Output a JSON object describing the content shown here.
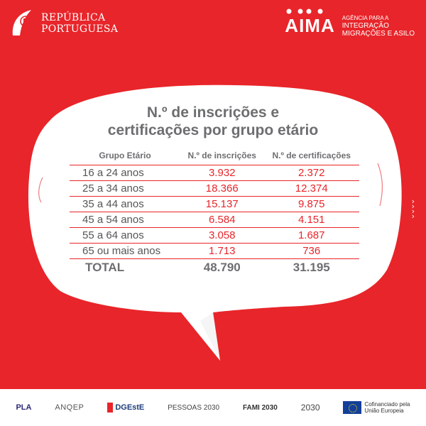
{
  "header": {
    "gov_name_line1": "REPÚBLICA",
    "gov_name_line2": "PORTUGUESA",
    "agency_word": "AIMA",
    "agency_tag_line1": "AGÊNCIA PARA A",
    "agency_tag_line2": "INTEGRAÇÃO",
    "agency_tag_line3": "MIGRAÇÕES E ASILO"
  },
  "title_line1": "N.º de inscrições e",
  "title_line2": "certificações por grupo etário",
  "table": {
    "headers": [
      "Grupo Etário",
      "N.º de inscrições",
      "N.º de certificações"
    ],
    "rows": [
      {
        "group": "16 a 24 anos",
        "inscricoes": "3.932",
        "certificacoes": "2.372"
      },
      {
        "group": "25 a 34 anos",
        "inscricoes": "18.366",
        "certificacoes": "12.374"
      },
      {
        "group": "35 a 44 anos",
        "inscricoes": "15.137",
        "certificacoes": "9.875"
      },
      {
        "group": "45 a 54 anos",
        "inscricoes": "6.584",
        "certificacoes": "4.151"
      },
      {
        "group": "55 a 64 anos",
        "inscricoes": "3.058",
        "certificacoes": "1.687"
      },
      {
        "group": "65 ou mais anos",
        "inscricoes": "1.713",
        "certificacoes": "736"
      }
    ],
    "total": {
      "label": "TOTAL",
      "inscricoes": "48.790",
      "certificacoes": "31.195"
    }
  },
  "footer": {
    "pla": "PLA",
    "anqep": "ANQEP",
    "dgeste": "DGEstE",
    "pessoas": "PESSOAS 2030",
    "fami": "FAMI 2030",
    "portugal": "2030",
    "eu_line1": "Cofinanciado pela",
    "eu_line2": "União Europeia"
  },
  "colors": {
    "background": "#e8252a",
    "bubble": "#ffffff",
    "text_gray": "#6d6e70"
  }
}
